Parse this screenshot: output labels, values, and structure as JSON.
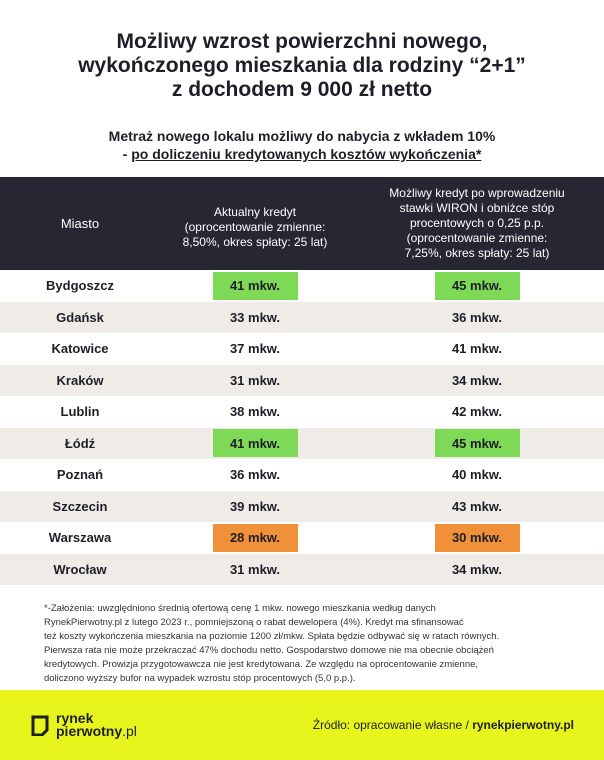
{
  "title": {
    "line1": "Możliwy wzrost powierzchni nowego,",
    "line2": "wykończonego mieszkania dla rodziny “2+1”",
    "line3": "z dochodem 9 000 zł netto"
  },
  "subtitle": {
    "line1": "Metraż nowego lokalu możliwy do nabycia z wkładem 10%",
    "line2_prefix": "- ",
    "line2_underlined": "po doliczeniu kredytowanych kosztów wykończenia*"
  },
  "table": {
    "headers": {
      "city": "Miasto",
      "col1": [
        "Aktualny kredyt",
        "(oprocentowanie zmienne:",
        "8,50%, okres spłaty: 25 lat)"
      ],
      "col2": [
        "Możliwy kredyt po wprowadzeniu",
        "stawki WIRON i obniżce stóp",
        "procentowych o 0,25 p.p.",
        "(oprocentowanie zmienne:",
        "7,25%, okres spłaty: 25 lat)"
      ]
    },
    "rows": [
      {
        "city": "Bydgoszcz",
        "v1": "41 mkw.",
        "v2": "45 mkw.",
        "highlight": "green"
      },
      {
        "city": "Gdańsk",
        "v1": "33 mkw.",
        "v2": "36 mkw.",
        "highlight": ""
      },
      {
        "city": "Katowice",
        "v1": "37 mkw.",
        "v2": "41 mkw.",
        "highlight": ""
      },
      {
        "city": "Kraków",
        "v1": "31 mkw.",
        "v2": "34 mkw.",
        "highlight": ""
      },
      {
        "city": "Lublin",
        "v1": "38 mkw.",
        "v2": "42 mkw.",
        "highlight": ""
      },
      {
        "city": "Łódź",
        "v1": "41 mkw.",
        "v2": "45 mkw.",
        "highlight": "green"
      },
      {
        "city": "Poznań",
        "v1": "36 mkw.",
        "v2": "40 mkw.",
        "highlight": ""
      },
      {
        "city": "Szczecin",
        "v1": "39 mkw.",
        "v2": "43 mkw.",
        "highlight": ""
      },
      {
        "city": "Warszawa",
        "v1": "28 mkw.",
        "v2": "30 mkw.",
        "highlight": "orange"
      },
      {
        "city": "Wrocław",
        "v1": "31 mkw.",
        "v2": "34 mkw.",
        "highlight": ""
      }
    ]
  },
  "footnote": [
    "*-Założenia: uwzględniono średnią ofertową cenę 1 mkw. nowego mieszkania według danych",
    "RynekPierwotny.pl z lutego 2023 r., pomniejszoną o rabat dewelopera (4%). Kredyt ma sfinansować",
    "też koszty wykończenia mieszkania na poziomie 1200 zł/mkw. Spłata będzie odbywać się w ratach równych.",
    "Pierwsza rata nie może przekraczać 47% dochodu netto. Gospodarstwo domowe nie ma obecnie obciążeń",
    "kredytowych. Prowizja przygotowawcza nie jest kredytowana. Ze względu na oprocentowanie zmienne,",
    "doliczono wyższy bufor na wypadek wzrostu stóp procentowych (5,0 p.p.)."
  ],
  "footer": {
    "logo_line1": "rynek",
    "logo_line2": "pierwotny",
    "logo_suffix": ".pl",
    "source_prefix": "Źródło:  opracowanie własne / ",
    "source_bold": "rynekpierwotny.pl"
  },
  "colors": {
    "header_bg": "#272733",
    "stripe": "#efece8",
    "green": "#7ed957",
    "orange": "#f0913a",
    "footer_bg": "#e8f51c"
  }
}
